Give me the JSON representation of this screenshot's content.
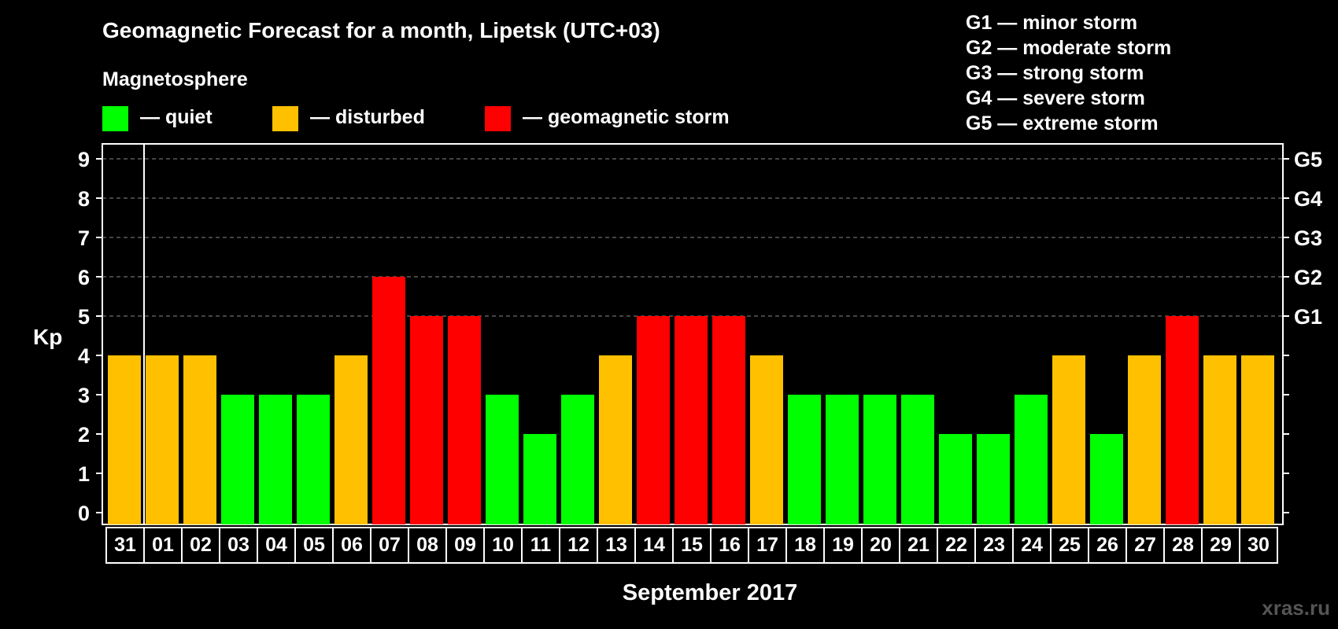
{
  "chart_data": {
    "type": "bar",
    "title": "Geomagnetic Forecast for a month, Lipetsk (UTC+03)",
    "legend_title": "Magnetosphere",
    "legend": [
      {
        "key": "quiet",
        "label": "— quiet",
        "color": "#00ff00"
      },
      {
        "key": "disturbed",
        "label": "— disturbed",
        "color": "#ffc000"
      },
      {
        "key": "storm",
        "label": "— geomagnetic storm",
        "color": "#ff0000"
      }
    ],
    "g_legend": [
      "G1 — minor storm",
      "G2 — moderate storm",
      "G3 — strong storm",
      "G4 — severe storm",
      "G5 — extreme storm"
    ],
    "ylabel": "Kp",
    "xlabel": "September 2017",
    "ylim": [
      0,
      9
    ],
    "yticks": [
      "0",
      "1",
      "2",
      "3",
      "4",
      "5",
      "6",
      "7",
      "8",
      "9"
    ],
    "right_ticks": [
      {
        "value": 5,
        "label": "G1"
      },
      {
        "value": 6,
        "label": "G2"
      },
      {
        "value": 7,
        "label": "G3"
      },
      {
        "value": 8,
        "label": "G4"
      },
      {
        "value": 9,
        "label": "G5"
      }
    ],
    "grid": "dashed horizontal at 5–9",
    "categories": [
      "31",
      "01",
      "02",
      "03",
      "04",
      "05",
      "06",
      "07",
      "08",
      "09",
      "10",
      "11",
      "12",
      "13",
      "14",
      "15",
      "16",
      "17",
      "18",
      "19",
      "20",
      "21",
      "22",
      "23",
      "24",
      "25",
      "26",
      "27",
      "28",
      "29",
      "30"
    ],
    "values": [
      4,
      4,
      4,
      3,
      3,
      3,
      4,
      6,
      5,
      5,
      3,
      2,
      3,
      4,
      5,
      5,
      5,
      4,
      3,
      3,
      3,
      3,
      2,
      2,
      3,
      4,
      2,
      4,
      5,
      4,
      4
    ],
    "status": [
      "disturbed",
      "disturbed",
      "disturbed",
      "quiet",
      "quiet",
      "quiet",
      "disturbed",
      "storm",
      "storm",
      "storm",
      "quiet",
      "quiet",
      "quiet",
      "disturbed",
      "storm",
      "storm",
      "storm",
      "disturbed",
      "quiet",
      "quiet",
      "quiet",
      "quiet",
      "quiet",
      "quiet",
      "quiet",
      "disturbed",
      "quiet",
      "disturbed",
      "storm",
      "disturbed",
      "disturbed"
    ]
  },
  "watermark": "xras.ru"
}
